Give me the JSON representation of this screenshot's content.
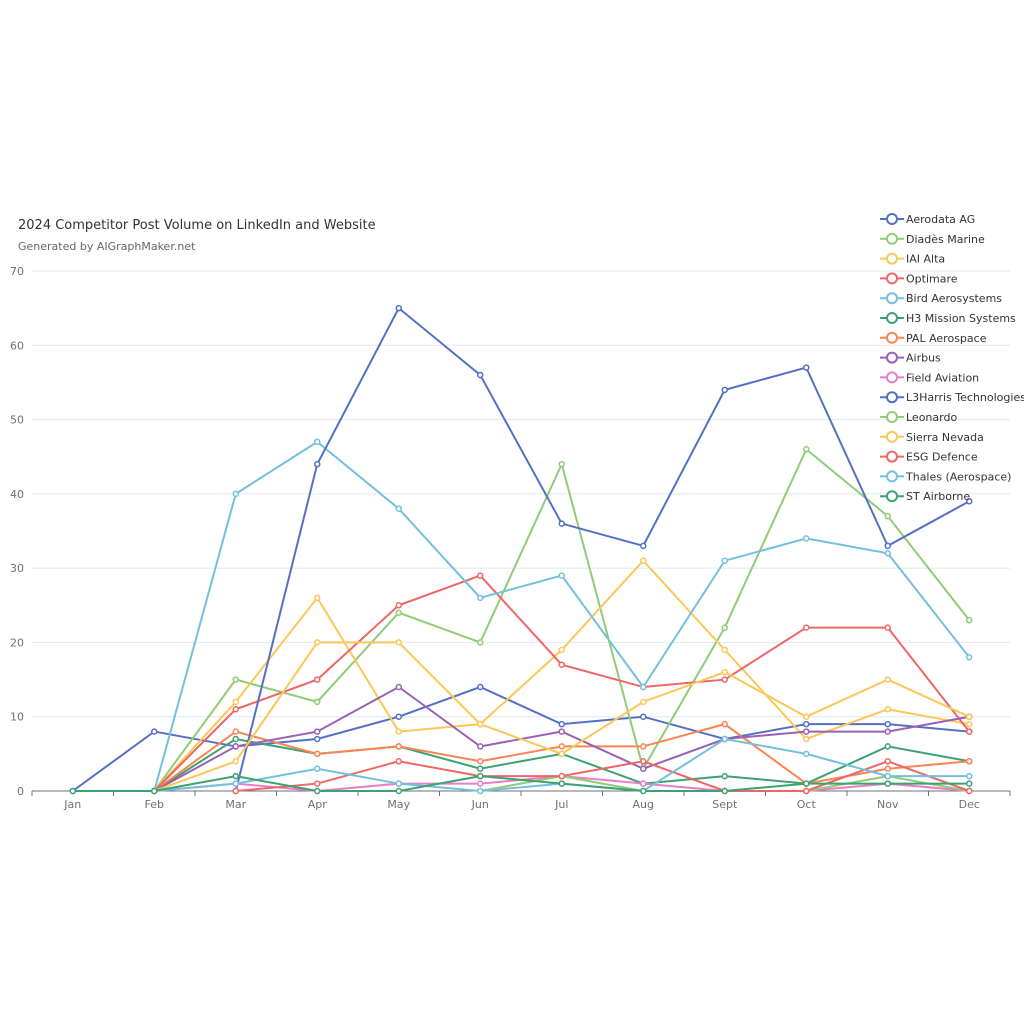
{
  "chart_data": {
    "type": "line",
    "title": "2024 Competitor Post Volume on LinkedIn and Website",
    "subtitle": "Generated by AIGraphMaker.net",
    "categories": [
      "Jan",
      "Feb",
      "Mar",
      "Apr",
      "May",
      "Jun",
      "Jul",
      "Aug",
      "Sept",
      "Oct",
      "Nov",
      "Dec"
    ],
    "ylim": [
      0,
      70
    ],
    "yticks": [
      0,
      10,
      20,
      30,
      40,
      50,
      60,
      70
    ],
    "grid": true,
    "legend_position": "top-right",
    "series": [
      {
        "name": "Aerodata AG",
        "color": "#5470c6",
        "values": [
          0,
          8,
          6,
          7,
          10,
          14,
          9,
          10,
          7,
          9,
          9,
          8
        ]
      },
      {
        "name": "Diadès Marine",
        "color": "#91cc75",
        "values": [
          null,
          0,
          15,
          12,
          24,
          20,
          44,
          3,
          22,
          46,
          37,
          23
        ]
      },
      {
        "name": "IAI Alta",
        "color": "#fac858",
        "values": [
          null,
          0,
          12,
          26,
          8,
          9,
          19,
          31,
          19,
          7,
          11,
          9
        ]
      },
      {
        "name": "Optimare",
        "color": "#ee6666",
        "values": [
          null,
          0,
          11,
          15,
          25,
          29,
          17,
          14,
          15,
          22,
          22,
          8
        ]
      },
      {
        "name": "Bird Aerosystems",
        "color": "#73c0de",
        "values": [
          null,
          0,
          40,
          47,
          38,
          26,
          29,
          14,
          31,
          34,
          32,
          18
        ]
      },
      {
        "name": "H3 Mission Systems",
        "color": "#3ba272",
        "values": [
          null,
          0,
          7,
          5,
          6,
          3,
          5,
          1,
          2,
          1,
          6,
          4
        ]
      },
      {
        "name": "PAL Aerospace",
        "color": "#fc8452",
        "values": [
          null,
          0,
          8,
          5,
          6,
          4,
          6,
          6,
          9,
          1,
          3,
          4
        ]
      },
      {
        "name": "Airbus",
        "color": "#9a60b4",
        "values": [
          null,
          0,
          6,
          8,
          14,
          6,
          8,
          3,
          7,
          8,
          8,
          10
        ]
      },
      {
        "name": "Field Aviation",
        "color": "#ea7ccc",
        "values": [
          null,
          0,
          1,
          0,
          1,
          1,
          2,
          1,
          0,
          0,
          1,
          0
        ]
      },
      {
        "name": "L3Harris Technologies",
        "color": "#5470c6",
        "values": [
          null,
          null,
          0,
          44,
          65,
          56,
          36,
          33,
          54,
          57,
          33,
          39
        ]
      },
      {
        "name": "Leonardo",
        "color": "#91cc75",
        "values": [
          null,
          null,
          null,
          null,
          null,
          0,
          2,
          0,
          0,
          0,
          2,
          0
        ]
      },
      {
        "name": "Sierra Nevada",
        "color": "#fac858",
        "values": [
          null,
          0,
          4,
          20,
          20,
          9,
          5,
          12,
          16,
          10,
          15,
          10
        ]
      },
      {
        "name": "ESG Defence",
        "color": "#ee6666",
        "values": [
          null,
          null,
          0,
          1,
          4,
          2,
          2,
          4,
          0,
          0,
          4,
          0
        ]
      },
      {
        "name": "Thales (Aerospace)",
        "color": "#73c0de",
        "values": [
          null,
          0,
          1,
          3,
          1,
          0,
          1,
          0,
          7,
          5,
          2,
          2
        ]
      },
      {
        "name": "ST Airborne",
        "color": "#3ba272",
        "values": [
          0,
          0,
          2,
          0,
          0,
          2,
          1,
          0,
          0,
          1,
          1,
          1
        ]
      }
    ]
  }
}
